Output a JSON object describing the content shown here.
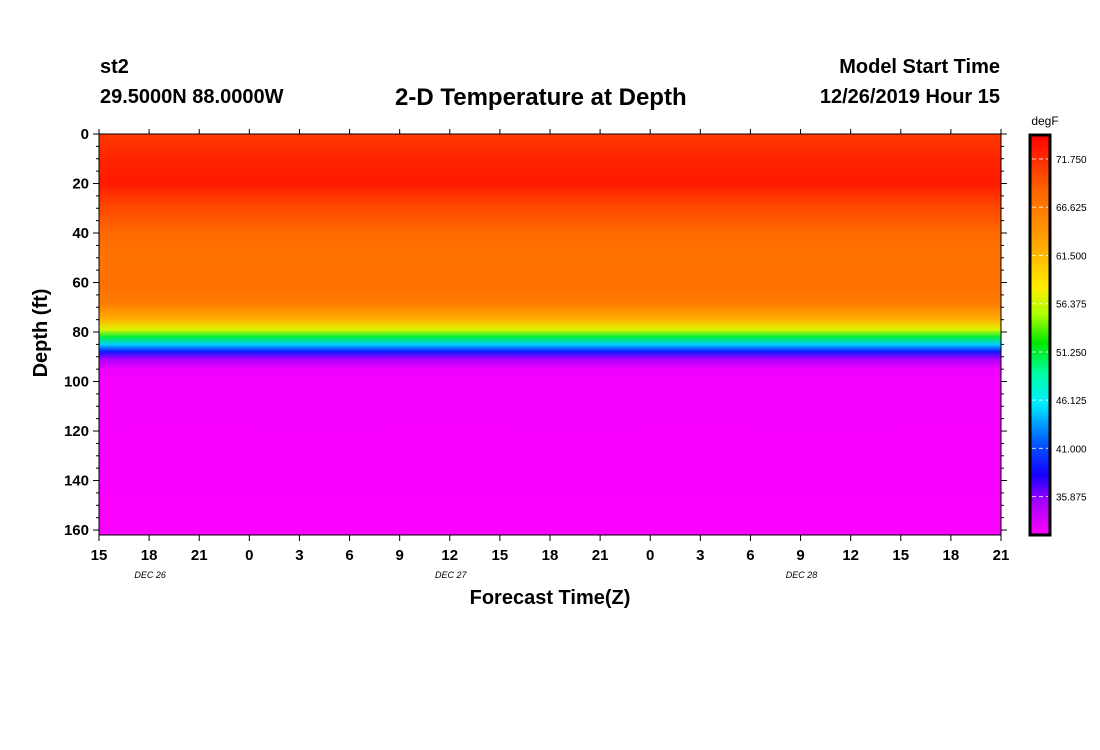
{
  "header": {
    "station": "st2",
    "coords": "29.5000N 88.0000W",
    "title": "2-D Temperature at Depth",
    "model_start_label": "Model Start Time",
    "model_start_value": "12/26/2019 Hour 15"
  },
  "chart_data": {
    "type": "heatmap",
    "title": "2-D Temperature at Depth",
    "xlabel": "Forecast Time(Z)",
    "ylabel": "Depth (ft)",
    "x_tick_labels": [
      "15",
      "18",
      "21",
      "0",
      "3",
      "6",
      "9",
      "12",
      "15",
      "18",
      "21",
      "0",
      "3",
      "6",
      "9",
      "12",
      "15",
      "18",
      "21"
    ],
    "x_hours_from_start": [
      0,
      3,
      6,
      9,
      12,
      15,
      18,
      21,
      24,
      27,
      30,
      33,
      36,
      39,
      42,
      45,
      48,
      51,
      54
    ],
    "date_labels": [
      {
        "label": "DEC 26",
        "at_tick": "18"
      },
      {
        "label": "DEC 27",
        "at_tick": "12"
      },
      {
        "label": "DEC 28",
        "at_tick": "9"
      }
    ],
    "date_label_tick_index": [
      1,
      7,
      14
    ],
    "ylim": [
      0,
      162
    ],
    "y_inverted": true,
    "y_ticks": [
      0,
      20,
      40,
      60,
      80,
      100,
      120,
      140,
      160
    ],
    "colorbar": {
      "unit": "degF",
      "min": 31.8,
      "max": 74.3,
      "tick_labels": [
        "71.750",
        "66.625",
        "61.500",
        "56.375",
        "51.250",
        "46.125",
        "41.000",
        "35.875"
      ]
    },
    "temperature_profile": [
      {
        "depth": 0,
        "temp": 71.0
      },
      {
        "depth": 10,
        "temp": 72.2
      },
      {
        "depth": 20,
        "temp": 72.8
      },
      {
        "depth": 30,
        "temp": 70.0
      },
      {
        "depth": 40,
        "temp": 68.0
      },
      {
        "depth": 50,
        "temp": 67.2
      },
      {
        "depth": 60,
        "temp": 67.5
      },
      {
        "depth": 68,
        "temp": 66.5
      },
      {
        "depth": 72,
        "temp": 64.0
      },
      {
        "depth": 75,
        "temp": 62.0
      },
      {
        "depth": 79,
        "temp": 57.0
      },
      {
        "depth": 82,
        "temp": 51.0
      },
      {
        "depth": 85,
        "temp": 45.0
      },
      {
        "depth": 88,
        "temp": 39.0
      },
      {
        "depth": 91,
        "temp": 35.0
      },
      {
        "depth": 95,
        "temp": 32.5
      },
      {
        "depth": 100,
        "temp": 32.2
      },
      {
        "depth": 162,
        "temp": 32.0
      }
    ]
  }
}
